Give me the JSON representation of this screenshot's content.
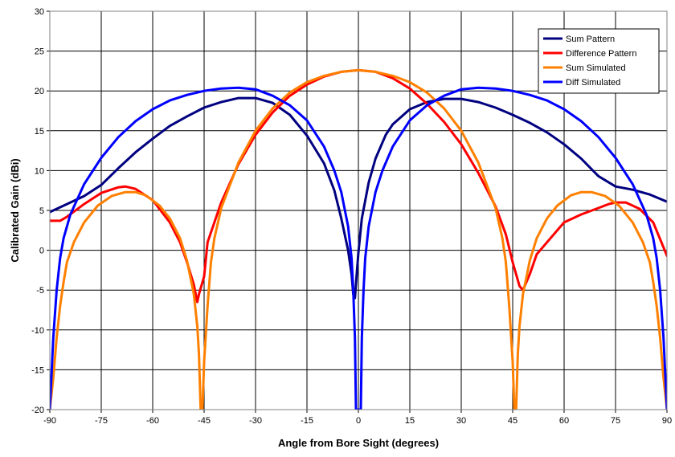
{
  "chart_data": {
    "type": "line",
    "title": "",
    "xlabel": "Angle from Bore Sight (degrees)",
    "ylabel": "Calibrated Gain (dBi)",
    "xlim": [
      -90,
      90
    ],
    "ylim": [
      -20,
      30
    ],
    "xticks": [
      -90,
      -75,
      -60,
      -45,
      -30,
      -15,
      0,
      15,
      30,
      45,
      60,
      75,
      90
    ],
    "yticks": [
      -20,
      -15,
      -10,
      -5,
      0,
      5,
      10,
      15,
      20,
      25,
      30
    ],
    "grid": true,
    "legend_position": "top-right",
    "series": [
      {
        "name": "Sum Pattern",
        "color": "#000080",
        "points": [
          [
            -90,
            4.8
          ],
          [
            -85,
            5.8
          ],
          [
            -80,
            6.8
          ],
          [
            -75,
            8.2
          ],
          [
            -70,
            10.3
          ],
          [
            -65,
            12.3
          ],
          [
            -60,
            14.0
          ],
          [
            -55,
            15.6
          ],
          [
            -50,
            16.8
          ],
          [
            -45,
            17.9
          ],
          [
            -40,
            18.6
          ],
          [
            -35,
            19.1
          ],
          [
            -30,
            19.1
          ],
          [
            -25,
            18.5
          ],
          [
            -20,
            17.0
          ],
          [
            -15,
            14.4
          ],
          [
            -10,
            10.9
          ],
          [
            -7,
            7.5
          ],
          [
            -5,
            4.0
          ],
          [
            -3,
            0.0
          ],
          [
            -2,
            -3.0
          ],
          [
            -1.5,
            -5.5
          ],
          [
            -1,
            -6.0
          ],
          [
            -0.5,
            -3.0
          ],
          [
            0,
            -0.3
          ],
          [
            1,
            4.0
          ],
          [
            3,
            8.5
          ],
          [
            5,
            11.5
          ],
          [
            8,
            14.5
          ],
          [
            10,
            15.8
          ],
          [
            15,
            17.7
          ],
          [
            20,
            18.6
          ],
          [
            25,
            19.0
          ],
          [
            30,
            19.0
          ],
          [
            35,
            18.6
          ],
          [
            40,
            17.9
          ],
          [
            45,
            17.0
          ],
          [
            50,
            16.0
          ],
          [
            55,
            14.8
          ],
          [
            60,
            13.3
          ],
          [
            65,
            11.5
          ],
          [
            70,
            9.3
          ],
          [
            75,
            8.0
          ],
          [
            80,
            7.6
          ],
          [
            85,
            7.0
          ],
          [
            90,
            6.1
          ]
        ]
      },
      {
        "name": "Difference Pattern",
        "color": "#ff0000",
        "points": [
          [
            -90,
            3.7
          ],
          [
            -87,
            3.7
          ],
          [
            -85,
            4.2
          ],
          [
            -80,
            5.8
          ],
          [
            -75,
            7.2
          ],
          [
            -70,
            7.9
          ],
          [
            -68,
            8.0
          ],
          [
            -65,
            7.7
          ],
          [
            -60,
            6.3
          ],
          [
            -55,
            3.5
          ],
          [
            -52,
            1.0
          ],
          [
            -50,
            -1.5
          ],
          [
            -48,
            -4.3
          ],
          [
            -47,
            -6.5
          ],
          [
            -46.5,
            -5.5
          ],
          [
            -45,
            -3.3
          ],
          [
            -44,
            1.0
          ],
          [
            -42,
            3.5
          ],
          [
            -40,
            6.0
          ],
          [
            -35,
            10.8
          ],
          [
            -30,
            14.5
          ],
          [
            -25,
            17.3
          ],
          [
            -20,
            19.4
          ],
          [
            -15,
            20.8
          ],
          [
            -10,
            21.8
          ],
          [
            -5,
            22.4
          ],
          [
            0,
            22.6
          ],
          [
            5,
            22.4
          ],
          [
            10,
            21.6
          ],
          [
            15,
            20.3
          ],
          [
            20,
            18.4
          ],
          [
            25,
            16.1
          ],
          [
            30,
            13.3
          ],
          [
            35,
            9.7
          ],
          [
            40,
            5.5
          ],
          [
            43,
            2.0
          ],
          [
            45,
            -1.5
          ],
          [
            47,
            -4.5
          ],
          [
            48,
            -5.0
          ],
          [
            50,
            -3.0
          ],
          [
            52,
            -0.5
          ],
          [
            55,
            1.0
          ],
          [
            60,
            3.5
          ],
          [
            65,
            4.5
          ],
          [
            70,
            5.3
          ],
          [
            73,
            5.8
          ],
          [
            75,
            6.0
          ],
          [
            78,
            6.0
          ],
          [
            82,
            5.2
          ],
          [
            86,
            3.5
          ],
          [
            90,
            -0.7
          ]
        ]
      },
      {
        "name": "Sum Simulated",
        "color": "#ff8000",
        "points": [
          [
            -90,
            -20
          ],
          [
            -89,
            -16
          ],
          [
            -88,
            -11
          ],
          [
            -87,
            -7
          ],
          [
            -86,
            -4
          ],
          [
            -85,
            -1.5
          ],
          [
            -83,
            1.0
          ],
          [
            -80,
            3.5
          ],
          [
            -76,
            5.6
          ],
          [
            -72,
            6.8
          ],
          [
            -68,
            7.3
          ],
          [
            -65,
            7.3
          ],
          [
            -62,
            6.9
          ],
          [
            -58,
            5.6
          ],
          [
            -55,
            4.0
          ],
          [
            -52,
            1.5
          ],
          [
            -50,
            -1.3
          ],
          [
            -48,
            -5.5
          ],
          [
            -47,
            -9.5
          ],
          [
            -46.5,
            -13
          ],
          [
            -46,
            -20
          ],
          [
            -45.5,
            -20
          ],
          [
            -45,
            -14
          ],
          [
            -44,
            -7
          ],
          [
            -43,
            -1.5
          ],
          [
            -42,
            1.5
          ],
          [
            -40,
            5.3
          ],
          [
            -35,
            11.0
          ],
          [
            -30,
            15.0
          ],
          [
            -25,
            17.8
          ],
          [
            -20,
            19.8
          ],
          [
            -15,
            21.1
          ],
          [
            -10,
            21.9
          ],
          [
            -5,
            22.4
          ],
          [
            0,
            22.6
          ],
          [
            5,
            22.4
          ],
          [
            10,
            21.9
          ],
          [
            15,
            21.1
          ],
          [
            20,
            19.8
          ],
          [
            25,
            17.8
          ],
          [
            30,
            15.0
          ],
          [
            35,
            11.0
          ],
          [
            40,
            5.3
          ],
          [
            42,
            1.5
          ],
          [
            43,
            -1.5
          ],
          [
            44,
            -7
          ],
          [
            45,
            -14
          ],
          [
            45.5,
            -20
          ],
          [
            46,
            -20
          ],
          [
            46.5,
            -13
          ],
          [
            47,
            -9.5
          ],
          [
            48,
            -5.5
          ],
          [
            50,
            -1.3
          ],
          [
            52,
            1.5
          ],
          [
            55,
            4.0
          ],
          [
            58,
            5.6
          ],
          [
            62,
            6.9
          ],
          [
            65,
            7.3
          ],
          [
            68,
            7.3
          ],
          [
            72,
            6.8
          ],
          [
            76,
            5.6
          ],
          [
            80,
            3.5
          ],
          [
            83,
            1.0
          ],
          [
            85,
            -1.5
          ],
          [
            86,
            -4
          ],
          [
            87,
            -7
          ],
          [
            88,
            -11
          ],
          [
            89,
            -16
          ],
          [
            90,
            -20
          ]
        ]
      },
      {
        "name": "Diff Simulated",
        "color": "#0000ff",
        "points": [
          [
            -90,
            -20
          ],
          [
            -89,
            -11
          ],
          [
            -88,
            -5
          ],
          [
            -87,
            -1
          ],
          [
            -86,
            1.5
          ],
          [
            -84,
            4.5
          ],
          [
            -80,
            8.3
          ],
          [
            -75,
            11.6
          ],
          [
            -70,
            14.2
          ],
          [
            -65,
            16.2
          ],
          [
            -60,
            17.7
          ],
          [
            -55,
            18.8
          ],
          [
            -50,
            19.5
          ],
          [
            -45,
            20.0
          ],
          [
            -40,
            20.3
          ],
          [
            -35,
            20.4
          ],
          [
            -30,
            20.2
          ],
          [
            -25,
            19.4
          ],
          [
            -20,
            18.2
          ],
          [
            -15,
            16.3
          ],
          [
            -10,
            13.0
          ],
          [
            -7,
            10.0
          ],
          [
            -5,
            7.3
          ],
          [
            -3,
            3.0
          ],
          [
            -2,
            -1.0
          ],
          [
            -1.5,
            -5
          ],
          [
            -1,
            -11
          ],
          [
            -0.7,
            -20
          ],
          [
            0.7,
            -20
          ],
          [
            1,
            -11
          ],
          [
            1.5,
            -5
          ],
          [
            2,
            -1.0
          ],
          [
            3,
            3.0
          ],
          [
            5,
            7.3
          ],
          [
            7,
            10.0
          ],
          [
            10,
            13.0
          ],
          [
            15,
            16.3
          ],
          [
            20,
            18.2
          ],
          [
            25,
            19.4
          ],
          [
            30,
            20.2
          ],
          [
            35,
            20.4
          ],
          [
            40,
            20.3
          ],
          [
            45,
            20.0
          ],
          [
            50,
            19.5
          ],
          [
            55,
            18.8
          ],
          [
            60,
            17.7
          ],
          [
            65,
            16.2
          ],
          [
            70,
            14.2
          ],
          [
            75,
            11.6
          ],
          [
            80,
            8.3
          ],
          [
            84,
            4.5
          ],
          [
            86,
            1.5
          ],
          [
            87,
            -1
          ],
          [
            88,
            -5
          ],
          [
            89,
            -11
          ],
          [
            90,
            -20
          ]
        ]
      }
    ]
  }
}
